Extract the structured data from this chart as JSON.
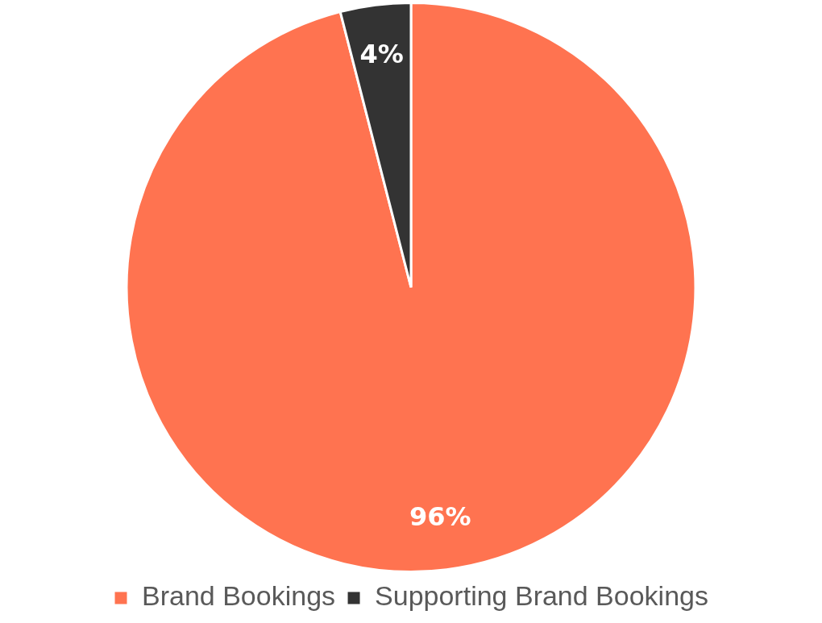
{
  "chart_data": {
    "type": "pie",
    "categories": [
      "Brand Bookings",
      "Supporting Brand Bookings"
    ],
    "values": [
      96,
      4
    ],
    "colors": [
      "#ff7350",
      "#333333"
    ],
    "value_labels": [
      "96%",
      "4%"
    ],
    "legend": "bottom"
  }
}
